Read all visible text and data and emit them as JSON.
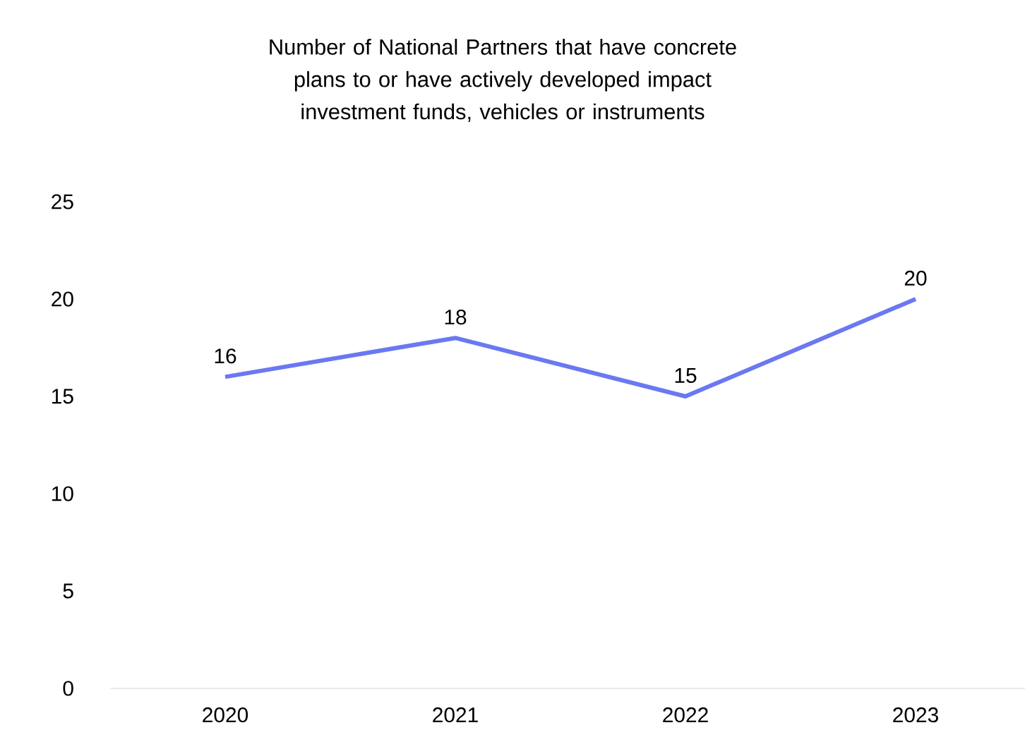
{
  "chart_data": {
    "type": "line",
    "title": "Number of National Partners that have concrete plans to or have actively developed impact investment funds, vehicles or instruments",
    "categories": [
      "2020",
      "2021",
      "2022",
      "2023"
    ],
    "values": [
      16,
      18,
      15,
      20
    ],
    "color": "#6b78f2",
    "ylim": [
      0,
      25
    ],
    "yticks": [
      0,
      5,
      10,
      15,
      20,
      25
    ],
    "grid": false,
    "marker": "none",
    "line_style": "solid",
    "data_labels": true
  }
}
